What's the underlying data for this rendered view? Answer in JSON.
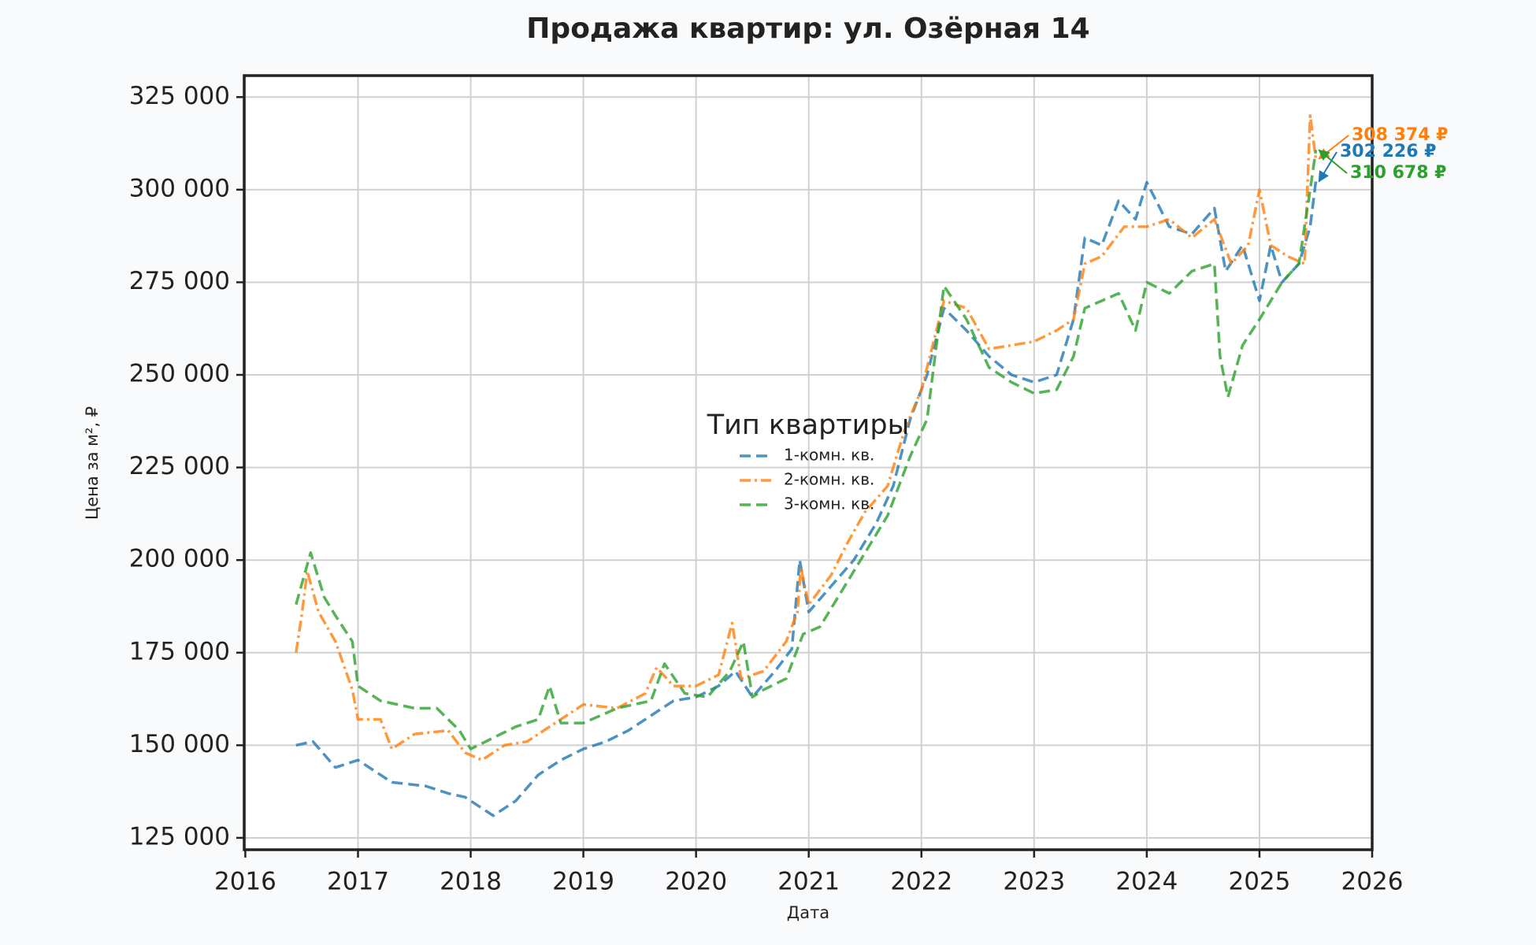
{
  "chart_data": {
    "type": "line",
    "title": "Продажа квартир: ул. Озёрная 14",
    "x_label": "Дата",
    "y_label": "Цена за м², ₽",
    "xlim": [
      2015.99,
      2026.0
    ],
    "xticks": [
      2016,
      2017,
      2018,
      2019,
      2020,
      2021,
      2022,
      2023,
      2024,
      2025,
      2026
    ],
    "ylim": [
      121800,
      330800
    ],
    "yticks": [
      {
        "value": 125000,
        "label": "125 000"
      },
      {
        "value": 150000,
        "label": "150 000"
      },
      {
        "value": 175000,
        "label": "175 000"
      },
      {
        "value": 200000,
        "label": "200 000"
      },
      {
        "value": 225000,
        "label": "225 000"
      },
      {
        "value": 250000,
        "label": "250 000"
      },
      {
        "value": 275000,
        "label": "275 000"
      },
      {
        "value": 300000,
        "label": "300 000"
      },
      {
        "value": 325000,
        "label": "325 000"
      }
    ],
    "grid": true,
    "legend_title": "Тип квартиры",
    "legend_position": "center",
    "series": [
      {
        "name": "1-комн. кв.",
        "color": "#1f77b4",
        "linestyle": "--",
        "x": [
          2016.45,
          2016.6,
          2016.8,
          2017.0,
          2017.3,
          2017.6,
          2017.8,
          2017.95,
          2018.1,
          2018.2,
          2018.4,
          2018.6,
          2018.8,
          2019.0,
          2019.2,
          2019.4,
          2019.6,
          2019.8,
          2020.0,
          2020.2,
          2020.35,
          2020.5,
          2020.7,
          2020.85,
          2020.92,
          2021.0,
          2021.2,
          2021.4,
          2021.6,
          2021.75,
          2021.9,
          2022.05,
          2022.2,
          2022.4,
          2022.6,
          2022.8,
          2023.0,
          2023.2,
          2023.35,
          2023.45,
          2023.6,
          2023.75,
          2023.9,
          2024.0,
          2024.2,
          2024.4,
          2024.6,
          2024.7,
          2024.85,
          2025.0,
          2025.1,
          2025.2,
          2025.35,
          2025.45,
          2025.5
        ],
        "values": [
          150000,
          151000,
          144000,
          146000,
          140000,
          139000,
          137000,
          136000,
          133000,
          131000,
          135000,
          142000,
          146000,
          149000,
          151000,
          154000,
          158000,
          162000,
          163000,
          166000,
          170000,
          163000,
          170000,
          176000,
          200000,
          186000,
          193000,
          200000,
          210000,
          220000,
          238000,
          250000,
          268000,
          262000,
          255000,
          250000,
          248000,
          250000,
          265000,
          287000,
          285000,
          297000,
          292000,
          302000,
          290000,
          288000,
          295000,
          278000,
          285000,
          270000,
          285000,
          275000,
          280000,
          290000,
          302226
        ]
      },
      {
        "name": "2-комн. кв.",
        "color": "#ff7f0e",
        "linestyle": "-.",
        "x": [
          2016.45,
          2016.5,
          2016.55,
          2016.65,
          2016.8,
          2016.95,
          2017.0,
          2017.2,
          2017.3,
          2017.5,
          2017.8,
          2017.95,
          2018.1,
          2018.3,
          2018.5,
          2018.7,
          2018.85,
          2019.0,
          2019.3,
          2019.55,
          2019.65,
          2019.8,
          2020.0,
          2020.2,
          2020.32,
          2020.4,
          2020.6,
          2020.8,
          2020.9,
          2020.93,
          2021.0,
          2021.2,
          2021.35,
          2021.5,
          2021.7,
          2021.85,
          2022.0,
          2022.2,
          2022.4,
          2022.6,
          2022.8,
          2023.0,
          2023.2,
          2023.35,
          2023.45,
          2023.6,
          2023.8,
          2024.0,
          2024.2,
          2024.4,
          2024.6,
          2024.75,
          2024.9,
          2025.0,
          2025.1,
          2025.25,
          2025.4,
          2025.45,
          2025.5
        ],
        "values": [
          175000,
          185000,
          197000,
          186000,
          178000,
          165000,
          157000,
          157000,
          149000,
          153000,
          154000,
          148000,
          146000,
          150000,
          151000,
          155000,
          158000,
          161000,
          160000,
          164000,
          171000,
          166000,
          166000,
          169000,
          183000,
          168000,
          170000,
          178000,
          186000,
          198000,
          188000,
          196000,
          205000,
          213000,
          220000,
          235000,
          246000,
          270000,
          268000,
          257000,
          258000,
          259000,
          262000,
          265000,
          280000,
          282000,
          290000,
          290000,
          292000,
          287000,
          292000,
          280000,
          285000,
          300000,
          285000,
          282000,
          280000,
          320000,
          308374
        ]
      },
      {
        "name": "3-комн. кв.",
        "color": "#2ca02c",
        "linestyle": "--",
        "x": [
          2016.45,
          2016.58,
          2016.7,
          2016.8,
          2016.95,
          2017.0,
          2017.2,
          2017.5,
          2017.7,
          2017.9,
          2018.0,
          2018.2,
          2018.4,
          2018.6,
          2018.7,
          2018.8,
          2019.0,
          2019.3,
          2019.6,
          2019.72,
          2019.9,
          2020.1,
          2020.3,
          2020.42,
          2020.5,
          2020.6,
          2020.8,
          2020.95,
          2021.1,
          2021.3,
          2021.5,
          2021.7,
          2021.9,
          2022.05,
          2022.2,
          2022.4,
          2022.6,
          2022.8,
          2023.0,
          2023.2,
          2023.35,
          2023.45,
          2023.6,
          2023.75,
          2023.9,
          2024.0,
          2024.2,
          2024.4,
          2024.6,
          2024.65,
          2024.72,
          2024.85,
          2025.0,
          2025.2,
          2025.35,
          2025.45,
          2025.5
        ],
        "values": [
          188000,
          202000,
          190000,
          185000,
          178000,
          166000,
          162000,
          160000,
          160000,
          154000,
          149000,
          152000,
          155000,
          157000,
          166000,
          156000,
          156000,
          160000,
          162000,
          172000,
          164000,
          163000,
          170000,
          178000,
          163000,
          165000,
          168000,
          180000,
          182000,
          192000,
          202000,
          212000,
          228000,
          238000,
          274000,
          265000,
          252000,
          248000,
          245000,
          246000,
          255000,
          268000,
          270000,
          272000,
          262000,
          275000,
          272000,
          278000,
          280000,
          255000,
          244000,
          258000,
          265000,
          275000,
          280000,
          300000,
          310678
        ]
      }
    ],
    "annotations": [
      {
        "text": "302 226 ₽",
        "color": "#1f77b4"
      },
      {
        "text": "308 374 ₽",
        "color": "#ff7f0e"
      },
      {
        "text": "310 678 ₽",
        "color": "#2ca02c"
      }
    ]
  }
}
